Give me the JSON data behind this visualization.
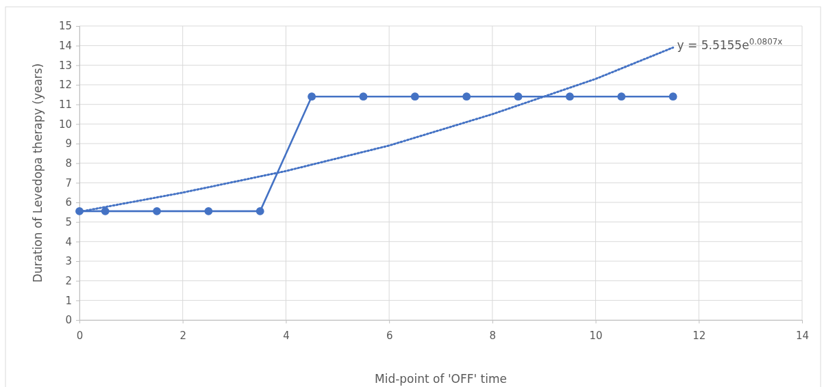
{
  "chart_data": {
    "type": "line",
    "xlabel": "Mid-point of 'OFF' time",
    "ylabel": "Duration of Levedopa therapy (years)",
    "xlim": [
      0,
      14
    ],
    "xticks": [
      0,
      2,
      4,
      6,
      8,
      10,
      12,
      14
    ],
    "ylim": [
      0,
      15
    ],
    "yticks": [
      0,
      1,
      2,
      3,
      4,
      5,
      6,
      7,
      8,
      9,
      10,
      11,
      12,
      13,
      14,
      15
    ],
    "grid": true,
    "series": [
      {
        "color": "#4472c4",
        "marker": "circle",
        "line_style": "solid",
        "x": [
          0,
          0.5,
          1.5,
          2.5,
          3.5,
          4.5,
          5.5,
          6.5,
          7.5,
          8.5,
          9.5,
          10.5,
          11.5
        ],
        "values": [
          5.55,
          5.55,
          5.55,
          5.55,
          5.55,
          11.4,
          11.4,
          11.4,
          11.4,
          11.4,
          11.4,
          11.4,
          11.4
        ]
      },
      {
        "color": "#4472c4",
        "marker": "none",
        "line_style": "dotted",
        "x": [
          0,
          2,
          4,
          6,
          8,
          10,
          11.5
        ],
        "values": [
          5.52,
          6.5,
          7.6,
          8.9,
          10.5,
          12.3,
          13.9
        ]
      }
    ],
    "annotations": [
      {
        "text": "y = 5.5155e$^{0.0807x}$",
        "x": 11.5,
        "y": 13.9
      }
    ]
  }
}
